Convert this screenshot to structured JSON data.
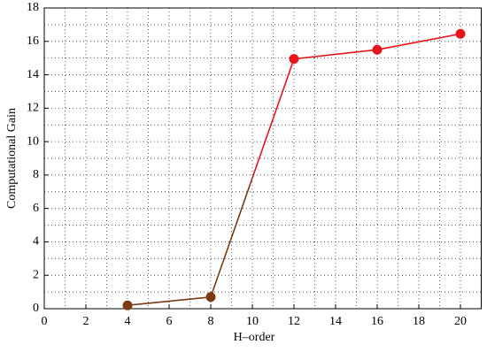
{
  "chart_data": {
    "type": "line",
    "x_label": "H–order",
    "y_label": "Computational Gain",
    "x": [
      4,
      8,
      12,
      16,
      20
    ],
    "series": [
      {
        "color": "#e8141b",
        "values": [
          0.2,
          0.7,
          14.95,
          15.5,
          16.45
        ],
        "marker_colors": [
          "#7b3a10",
          "#7b3a10",
          "#e8141b",
          "#e8141b",
          "#e8141b"
        ]
      }
    ],
    "xlim": [
      0,
      21
    ],
    "xticks": [
      0,
      2,
      4,
      6,
      8,
      10,
      12,
      14,
      16,
      18,
      20
    ],
    "ylim": [
      0,
      18
    ],
    "yticks": [
      0,
      2,
      4,
      6,
      8,
      10,
      12,
      14,
      16,
      18
    ],
    "grid": true,
    "minor_grid": true
  }
}
